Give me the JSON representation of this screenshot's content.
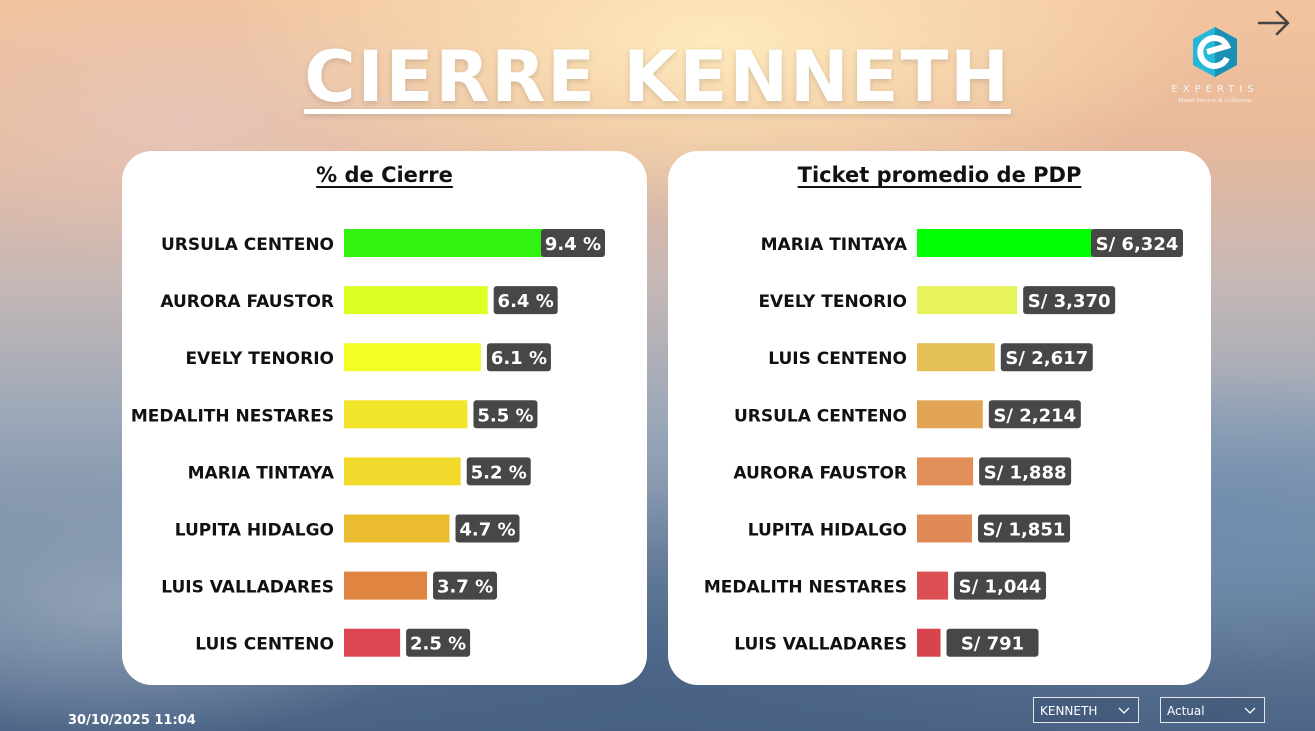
{
  "page": {
    "title": "CIERRE KENNETH",
    "timestamp": "30/10/2025 11:04"
  },
  "logo": {
    "name": "EXPERTIS",
    "tagline": "Master Services & Collections"
  },
  "filters": {
    "agent": "KENNETH",
    "period": "Actual"
  },
  "chart_data": [
    {
      "type": "bar",
      "orientation": "horizontal",
      "title": "% de Cierre",
      "categories": [
        "URSULA CENTENO",
        "AURORA FAUSTOR",
        "EVELY TENORIO",
        "MEDALITH NESTARES",
        "MARIA TINTAYA",
        "LUPITA HIDALGO",
        "LUIS VALLADARES",
        "LUIS CENTENO"
      ],
      "values": [
        9.4,
        6.4,
        6.1,
        5.5,
        5.2,
        4.7,
        3.7,
        2.5
      ],
      "labels": [
        "9.4 %",
        "6.4 %",
        "6.1 %",
        "5.5 %",
        "5.2 %",
        "4.7 %",
        "3.7 %",
        "2.5 %"
      ],
      "colors": [
        "#32f212",
        "#dcff24",
        "#f3ff24",
        "#f3e42c",
        "#f2da2d",
        "#ecbc30",
        "#e08442",
        "#db4650"
      ],
      "xlim": [
        0,
        9.4
      ]
    },
    {
      "type": "bar",
      "orientation": "horizontal",
      "title": "Ticket promedio de PDP",
      "categories": [
        "MARIA TINTAYA",
        "EVELY TENORIO",
        "LUIS CENTENO",
        "URSULA CENTENO",
        "AURORA FAUSTOR",
        "LUPITA HIDALGO",
        "MEDALITH NESTARES",
        "LUIS VALLADARES"
      ],
      "values": [
        6324,
        3370,
        2617,
        2214,
        1888,
        1851,
        1044,
        791
      ],
      "labels": [
        "S/ 6,324",
        "S/ 3,370",
        "S/ 2,617",
        "S/ 2,214",
        "S/ 1,888",
        "S/ 1,851",
        "S/ 1,044",
        "S/ 791"
      ],
      "colors": [
        "#00ff00",
        "#e7f35a",
        "#e4c055",
        "#e2a556",
        "#e08f58",
        "#e08b57",
        "#dc5053",
        "#d9434d"
      ],
      "xlim": [
        0,
        6324
      ]
    }
  ]
}
